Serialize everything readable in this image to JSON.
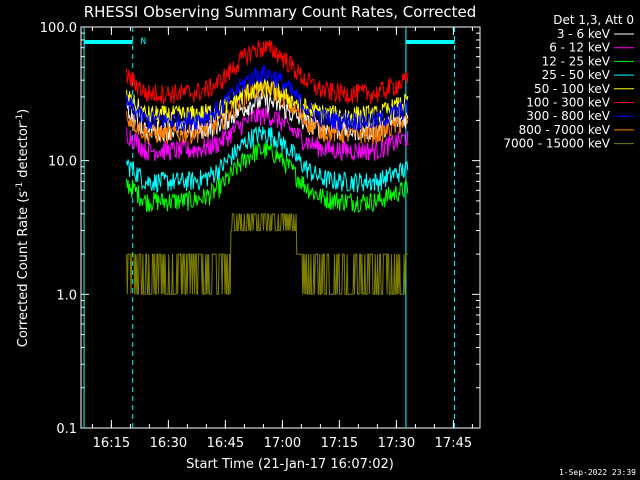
{
  "chart_data": {
    "type": "line",
    "title": "RHESSI Observing Summary Count Rates, Corrected",
    "ylabel_pre": "Corrected Count Rate (s",
    "ylabel_sup1": "-1",
    "ylabel_mid": " detector",
    "ylabel_sup2": "-1",
    "ylabel_post": ")",
    "xlabel": "Start Time (21-Jan-17 16:07:02)",
    "yscale": "log",
    "ylim": [
      0.1,
      100.0
    ],
    "xlim_min": [
      7.03,
      52.2
    ],
    "x_tick_labels": [
      "16:15",
      "16:30",
      "16:45",
      "17:00",
      "17:15",
      "17:30",
      "17:45"
    ],
    "x_tick_min": [
      15,
      30,
      45,
      60,
      75,
      90,
      105
    ],
    "y_tick_labels": [
      "0.1",
      "1.0",
      "10.0",
      "100.0"
    ],
    "y_tick_values": [
      0.1,
      1,
      10,
      100
    ],
    "legend_title": "Det 1,3, Att 0",
    "legend_position": "top-right",
    "timestamp": "1-Sep-2022 23:39",
    "night_flag_label": "N",
    "markers": {
      "night_start_min": [
        0,
        0
      ],
      "night_lines_min": [
        7.8,
        20.6,
        92.5,
        105.3
      ]
    },
    "series": [
      {
        "name": "3 - 6 keV",
        "color": "#ffffff",
        "start": 19,
        "end": 93,
        "base": 17,
        "peak": 28
      },
      {
        "name": "6 - 12 keV",
        "color": "#ff00ff",
        "start": 19,
        "end": 93,
        "base": 12,
        "peak": 22
      },
      {
        "name": "12 - 25 keV",
        "color": "#00ff00",
        "start": 19,
        "end": 93,
        "base": 5,
        "peak": 12
      },
      {
        "name": "25 - 50 keV",
        "color": "#00ffff",
        "start": 19,
        "end": 93,
        "base": 7,
        "peak": 16
      },
      {
        "name": "50 - 100 keV",
        "color": "#ffff00",
        "start": 19,
        "end": 93,
        "base": 22,
        "peak": 35
      },
      {
        "name": "100 - 300 keV",
        "color": "#ff0000",
        "start": 19,
        "end": 93,
        "base": 32,
        "peak": 70
      },
      {
        "name": "300 - 800 keV",
        "color": "#0000ff",
        "start": 19,
        "end": 93,
        "base": 20,
        "peak": 45
      },
      {
        "name": "800 - 7000 keV",
        "color": "#ff8000",
        "start": 19,
        "end": 93,
        "base": 16,
        "peak": 35
      },
      {
        "name": "7000 - 15000 keV",
        "color": "#808000",
        "start": 19,
        "end": 93,
        "base": 1.5,
        "peak": 4
      }
    ]
  }
}
